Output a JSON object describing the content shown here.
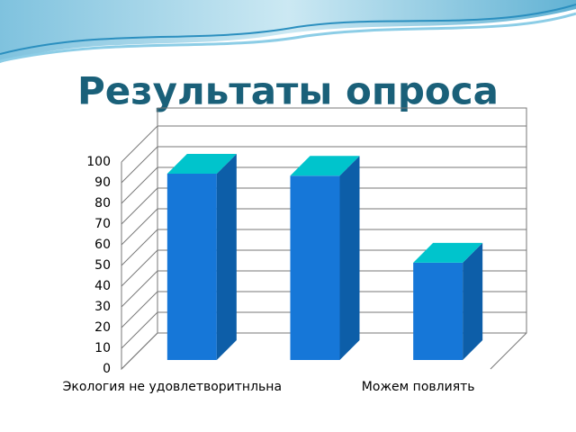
{
  "chart_data": {
    "type": "bar3d",
    "title": "Результаты опроса",
    "categories": [
      "Экология не удовлетворитнльна",
      null,
      "Можем повлиять"
    ],
    "series": [
      {
        "color": "#1677d8",
        "values": [
          90,
          89,
          47
        ]
      }
    ],
    "ylim": [
      0,
      100
    ],
    "yticks": [
      0,
      10,
      20,
      30,
      40,
      50,
      60,
      70,
      80,
      90,
      100
    ],
    "grid": true
  }
}
